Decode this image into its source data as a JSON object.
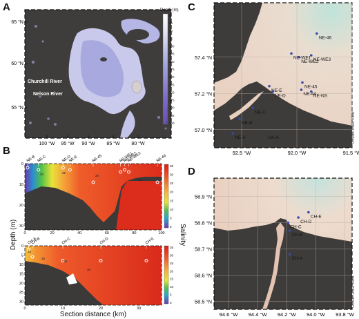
{
  "panels": {
    "a": "A",
    "b": "B",
    "c": "C",
    "d": "D"
  },
  "map_a": {
    "lat_ticks": [
      "65 °N",
      "60 °N",
      "55 °N"
    ],
    "lon_ticks": [
      "100 °W",
      "95 °W",
      "90 °W",
      "85 °W",
      "80 °W"
    ],
    "labels": {
      "churchill": "Churchill River",
      "nelson": "Nelson River"
    },
    "colorbar_title": "Depth (m)",
    "colorbar_ticks": [
      "0",
      "25",
      "50",
      "75",
      "100",
      "125",
      "150",
      "175",
      "200",
      "225",
      "250",
      "275",
      "300",
      "325",
      "350"
    ],
    "credit": "Ocean Data View"
  },
  "map_c": {
    "lat_ticks": [
      "57.4 °N",
      "57.2 °N",
      "57.0 °N"
    ],
    "lon_ticks": [
      "92.5 °W",
      "92.0 °W",
      "91.5 °W"
    ],
    "stations": [
      {
        "name": "NE-46",
        "lon": -91.82,
        "lat": 57.53
      },
      {
        "name": "NE-WE1",
        "lon": -92.05,
        "lat": 57.42
      },
      {
        "name": "NE-WE3",
        "lon": -91.87,
        "lat": 57.41
      },
      {
        "name": "NE-WE2",
        "lon": -91.98,
        "lat": 57.4
      },
      {
        "name": "NE-45",
        "lon": -91.95,
        "lat": 57.26
      },
      {
        "name": "NE-E",
        "lon": -92.25,
        "lat": 57.24
      },
      {
        "name": "NE-44",
        "lon": -91.96,
        "lat": 57.22
      },
      {
        "name": "NE-NS",
        "lon": -91.87,
        "lat": 57.21
      },
      {
        "name": "NE-D",
        "lon": -92.22,
        "lat": 57.21
      },
      {
        "name": "NE-C",
        "lon": -92.4,
        "lat": 57.12
      },
      {
        "name": "NE-B",
        "lon": -92.52,
        "lat": 57.06
      },
      {
        "name": "NE-A",
        "lon": -92.58,
        "lat": 56.98
      },
      {
        "name": "HA-A",
        "lon": -92.28,
        "lat": 56.98
      }
    ],
    "credit": "Ocean Data View"
  },
  "map_d": {
    "lat_ticks": [
      "58.9 °N",
      "58.8 °N",
      "58.7 °N",
      "58.6 °N",
      "58.5 °N"
    ],
    "lon_ticks": [
      "94.6 °W",
      "94.4 °W",
      "94.2 °W",
      "94.0 °W",
      "93.8 °W"
    ],
    "stations": [
      {
        "name": "CH-E",
        "lon": -94.05,
        "lat": 58.84
      },
      {
        "name": "CH-D",
        "lon": -94.12,
        "lat": 58.82
      },
      {
        "name": "CH-C",
        "lon": -94.19,
        "lat": 58.8
      },
      {
        "name": "CH-B",
        "lon": -94.18,
        "lat": 58.77
      },
      {
        "name": "CH-A",
        "lon": -94.18,
        "lat": 58.68
      }
    ],
    "credit": "Ocean Data View"
  },
  "section_b": {
    "ylabel": "Depth (m)",
    "xlabel": "Section distance (km)",
    "colorbar_label": "Salinity",
    "colorbar_ticks": [
      "35",
      "30",
      "25",
      "20",
      "15",
      "10",
      "5",
      "0"
    ],
    "top": {
      "stations": [
        "NE-B",
        "NE-C",
        "NE-D",
        "NE-E",
        "NE-45",
        "NE-WE1",
        "NE-WE2",
        "NE-WE3",
        "NE-46"
      ],
      "depth_ticks": [
        "0",
        "10",
        "20",
        "30"
      ],
      "dist_ticks": [
        "0",
        "20",
        "40",
        "60",
        "80",
        "100"
      ],
      "contours": [
        "20",
        "25",
        "28",
        "30"
      ]
    },
    "bottom": {
      "stations": [
        "CH-A",
        "CH-B",
        "CH-C",
        "CH-D",
        "CH-E"
      ],
      "depth_ticks": [
        "0",
        "5",
        "10",
        "15",
        "20",
        "25",
        "30"
      ],
      "dist_ticks": [
        "0",
        "10",
        "20",
        "30"
      ],
      "contours": [
        "28",
        "25",
        "20",
        "30"
      ]
    }
  }
}
